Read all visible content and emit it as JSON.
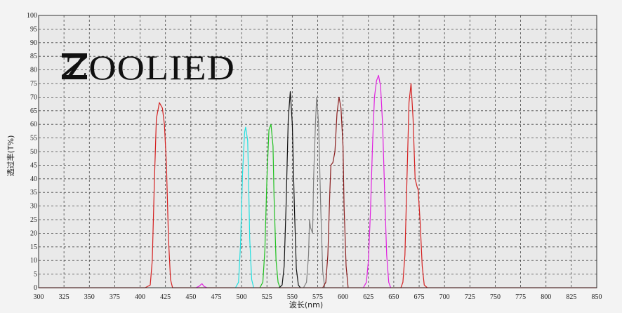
{
  "brand": {
    "logo_text": "ZOOLIED"
  },
  "chart_data": {
    "type": "line",
    "title": "",
    "xlabel": "波长(nm)",
    "ylabel": "透过率(T%)",
    "xlim": [
      300,
      850
    ],
    "ylim": [
      0,
      100
    ],
    "x_ticks": [
      300,
      325,
      350,
      375,
      400,
      425,
      450,
      475,
      500,
      525,
      550,
      575,
      600,
      625,
      650,
      675,
      700,
      725,
      750,
      775,
      800,
      825,
      850
    ],
    "y_ticks": [
      0,
      5,
      10,
      15,
      20,
      25,
      30,
      35,
      40,
      45,
      50,
      55,
      60,
      65,
      70,
      75,
      80,
      85,
      90,
      95,
      100
    ],
    "grid": true,
    "series": [
      {
        "color": "#d42020",
        "points": [
          [
            300,
            0
          ],
          [
            405,
            0
          ],
          [
            410,
            1
          ],
          [
            412,
            10
          ],
          [
            414,
            38
          ],
          [
            416,
            62
          ],
          [
            419,
            68
          ],
          [
            422,
            66
          ],
          [
            424,
            60
          ],
          [
            426,
            45
          ],
          [
            428,
            18
          ],
          [
            430,
            3
          ],
          [
            432,
            0
          ],
          [
            850,
            0
          ]
        ]
      },
      {
        "color": "#e020e0",
        "points": [
          [
            455,
            0
          ],
          [
            458,
            0.5
          ],
          [
            461,
            1.5
          ],
          [
            463,
            0.5
          ],
          [
            466,
            0
          ]
        ]
      },
      {
        "color": "#20e0e0",
        "points": [
          [
            494,
            0
          ],
          [
            497,
            2
          ],
          [
            499,
            16
          ],
          [
            501,
            42
          ],
          [
            503,
            57
          ],
          [
            504,
            59
          ],
          [
            506,
            54
          ],
          [
            507,
            38
          ],
          [
            508,
            18
          ],
          [
            510,
            3
          ],
          [
            512,
            0
          ]
        ]
      },
      {
        "color": "#20c020",
        "points": [
          [
            518,
            0
          ],
          [
            521,
            2
          ],
          [
            523,
            14
          ],
          [
            525,
            40
          ],
          [
            527,
            58
          ],
          [
            529,
            60
          ],
          [
            531,
            52
          ],
          [
            532,
            34
          ],
          [
            534,
            10
          ],
          [
            536,
            2
          ],
          [
            538,
            0
          ]
        ]
      },
      {
        "color": "#111111",
        "points": [
          [
            537,
            0
          ],
          [
            540,
            1
          ],
          [
            542,
            8
          ],
          [
            544,
            32
          ],
          [
            546,
            62
          ],
          [
            548,
            72
          ],
          [
            550,
            60
          ],
          [
            552,
            30
          ],
          [
            554,
            7
          ],
          [
            556,
            1
          ],
          [
            558,
            0
          ]
        ]
      },
      {
        "color": "#808080",
        "points": [
          [
            561,
            0
          ],
          [
            564,
            2
          ],
          [
            566,
            12
          ],
          [
            567,
            25
          ],
          [
            568,
            22
          ],
          [
            570,
            20
          ],
          [
            571,
            40
          ],
          [
            573,
            62
          ],
          [
            574,
            70
          ],
          [
            576,
            60
          ],
          [
            578,
            30
          ],
          [
            580,
            6
          ],
          [
            582,
            0
          ]
        ]
      },
      {
        "color": "#8a1e1e",
        "points": [
          [
            580,
            0
          ],
          [
            583,
            2
          ],
          [
            585,
            12
          ],
          [
            587,
            35
          ],
          [
            588,
            45
          ],
          [
            590,
            46
          ],
          [
            592,
            50
          ],
          [
            594,
            64
          ],
          [
            596,
            70
          ],
          [
            598,
            66
          ],
          [
            600,
            52
          ],
          [
            601,
            30
          ],
          [
            603,
            8
          ],
          [
            605,
            0
          ]
        ]
      },
      {
        "color": "#e020e0",
        "points": [
          [
            620,
            0
          ],
          [
            623,
            2
          ],
          [
            625,
            10
          ],
          [
            627,
            28
          ],
          [
            629,
            52
          ],
          [
            631,
            70
          ],
          [
            633,
            76
          ],
          [
            635,
            78
          ],
          [
            637,
            74
          ],
          [
            639,
            60
          ],
          [
            641,
            35
          ],
          [
            643,
            12
          ],
          [
            645,
            2
          ],
          [
            647,
            0
          ]
        ]
      },
      {
        "color": "#d42020",
        "points": [
          [
            657,
            0
          ],
          [
            659,
            2
          ],
          [
            661,
            12
          ],
          [
            663,
            40
          ],
          [
            665,
            68
          ],
          [
            667,
            75
          ],
          [
            669,
            62
          ],
          [
            671,
            40
          ],
          [
            673,
            37
          ],
          [
            674,
            36
          ],
          [
            676,
            24
          ],
          [
            678,
            8
          ],
          [
            680,
            1
          ],
          [
            683,
            0
          ]
        ]
      }
    ]
  }
}
